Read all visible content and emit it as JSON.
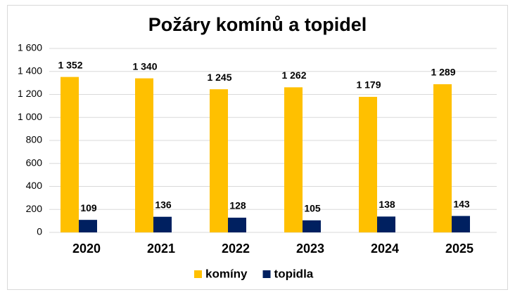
{
  "chart_data": {
    "type": "bar",
    "title": "Požáry komínů a topidel",
    "categories": [
      "2020",
      "2021",
      "2022",
      "2023",
      "2024",
      "2025"
    ],
    "series": [
      {
        "name": "komíny",
        "color": "#ffc000",
        "values": [
          1352,
          1340,
          1245,
          1262,
          1179,
          1289
        ],
        "value_labels": [
          "1 352",
          "1 340",
          "1 245",
          "1 262",
          "1 179",
          "1 289"
        ]
      },
      {
        "name": "topidla",
        "color": "#002060",
        "values": [
          109,
          136,
          128,
          105,
          138,
          143
        ]
      }
    ],
    "ylim": [
      0,
      1600
    ],
    "yticks": [
      0,
      200,
      400,
      600,
      800,
      {
        "value": 1000,
        "label": "1 000"
      },
      {
        "value": 1200,
        "label": "1 200"
      },
      {
        "value": 1400,
        "label": "1 400"
      },
      {
        "value": 1600,
        "label": "1 600"
      }
    ],
    "grid": true,
    "legend": "bottom"
  }
}
